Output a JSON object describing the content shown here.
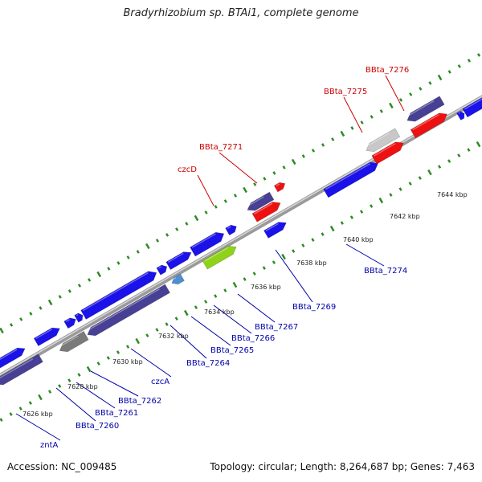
{
  "title": "Bradyrhizobium sp. BTAi1, complete genome",
  "footer": {
    "accession": "Accession: NC_009485",
    "topology": "Topology: circular; Length: 8,264,687 bp; Genes: 7,463"
  },
  "colors": {
    "backbone": "#8c8c8c",
    "tick": "#2e8b22",
    "forward_gene": "#1a12e8",
    "reverse_gene": "#474094",
    "highlight_red": "#ee1111",
    "grey_gene": "#7a7a7a",
    "light_grey_gene": "#c8c8c8",
    "lime_gene": "#8ed21a",
    "steel_gene": "#4f8fd0",
    "label_red": "#cc0000",
    "label_blue": "#0000aa"
  },
  "positions": [
    {
      "label": "7626 kbp",
      "pos": 7626
    },
    {
      "label": "7628 kbp",
      "pos": 7628
    },
    {
      "label": "7630 kbp",
      "pos": 7630
    },
    {
      "label": "7632 kbp",
      "pos": 7632
    },
    {
      "label": "7634 kbp",
      "pos": 7634
    },
    {
      "label": "7636 kbp",
      "pos": 7636
    },
    {
      "label": "7638 kbp",
      "pos": 7638
    },
    {
      "label": "7640 kbp",
      "pos": 7640
    },
    {
      "label": "7642 kbp",
      "pos": 7642
    },
    {
      "label": "7644 kbp",
      "pos": 7644
    }
  ],
  "gene_labels": [
    {
      "name": "BBta_7276",
      "color": "label_red"
    },
    {
      "name": "BBta_7275",
      "color": "label_red"
    },
    {
      "name": "BBta_7271",
      "color": "label_red"
    },
    {
      "name": "czcD",
      "color": "label_red"
    },
    {
      "name": "BBta_7274",
      "color": "label_blue"
    },
    {
      "name": "BBta_7269",
      "color": "label_blue"
    },
    {
      "name": "BBta_7267",
      "color": "label_blue"
    },
    {
      "name": "BBta_7266",
      "color": "label_blue"
    },
    {
      "name": "BBta_7265",
      "color": "label_blue"
    },
    {
      "name": "BBta_7264",
      "color": "label_blue"
    },
    {
      "name": "czcA",
      "color": "label_blue"
    },
    {
      "name": "BBta_7262",
      "color": "label_blue"
    },
    {
      "name": "BBta_7261",
      "color": "label_blue"
    },
    {
      "name": "BBta_7260",
      "color": "label_blue"
    },
    {
      "name": "zntA",
      "color": "label_blue"
    }
  ]
}
